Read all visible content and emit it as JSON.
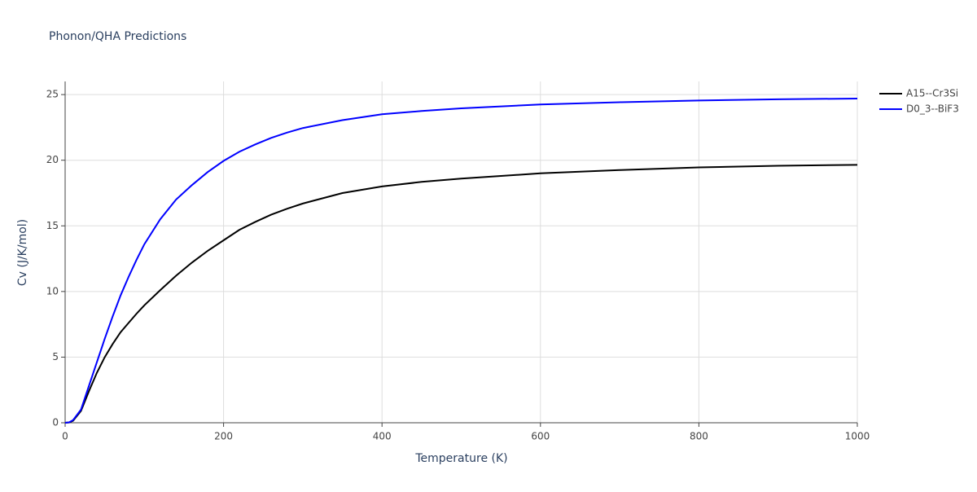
{
  "chart_data": {
    "type": "line",
    "title": "Phonon/QHA Predictions",
    "x_label": "Temperature (K)",
    "y_label": "Cv (J/K/mol)",
    "x": [
      0,
      5,
      10,
      20,
      30,
      40,
      50,
      60,
      70,
      80,
      90,
      100,
      120,
      140,
      160,
      180,
      200,
      220,
      240,
      260,
      280,
      300,
      350,
      400,
      450,
      500,
      600,
      700,
      800,
      900,
      1000
    ],
    "series": [
      {
        "name": "A15--Cr3Si",
        "color": "#000000",
        "values": [
          0,
          0.02,
          0.15,
          0.9,
          2.4,
          3.8,
          5.0,
          6.0,
          6.9,
          7.6,
          8.3,
          8.95,
          10.1,
          11.2,
          12.2,
          13.1,
          13.9,
          14.7,
          15.3,
          15.85,
          16.3,
          16.7,
          17.5,
          18.0,
          18.35,
          18.6,
          19.0,
          19.25,
          19.45,
          19.58,
          19.65
        ]
      },
      {
        "name": "D0_3--BiF3",
        "color": "#0000ff",
        "values": [
          0,
          0.03,
          0.2,
          1.0,
          2.8,
          4.6,
          6.4,
          8.1,
          9.7,
          11.1,
          12.4,
          13.6,
          15.5,
          17.0,
          18.1,
          19.1,
          19.95,
          20.65,
          21.2,
          21.7,
          22.1,
          22.45,
          23.05,
          23.5,
          23.75,
          23.95,
          24.25,
          24.42,
          24.55,
          24.64,
          24.7
        ]
      }
    ],
    "xlim": [
      0,
      1000
    ],
    "xticks": [
      0,
      200,
      400,
      600,
      800,
      1000
    ],
    "ylim": [
      0,
      26
    ],
    "yticks": [
      0,
      5,
      10,
      15,
      20,
      25
    ],
    "grid": true,
    "legend": "right"
  }
}
